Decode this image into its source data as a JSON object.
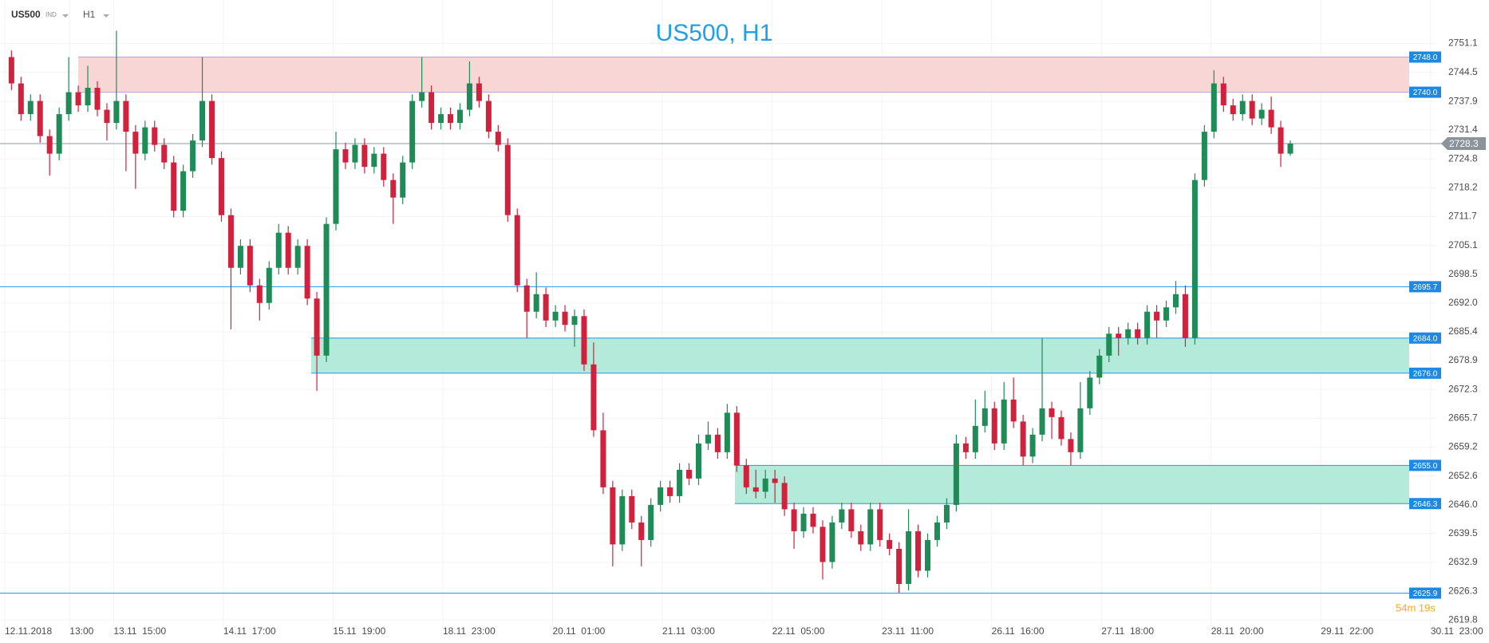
{
  "header": {
    "symbol": "US500",
    "symbol_type": "IND",
    "timeframe": "H1"
  },
  "chart_data": {
    "type": "candlestick",
    "title": "US500, H1",
    "countdown": "54m 19s",
    "up_color": "#1f8c57",
    "down_color": "#d0213d",
    "grid": true,
    "ylim": [
      2618,
      2761
    ],
    "xlim": [
      -1.2,
      149.3
    ],
    "yticks": [
      2751.1,
      2744.5,
      2737.9,
      2731.4,
      2724.8,
      2718.2,
      2711.7,
      2705.1,
      2698.5,
      {
        "value": 2692,
        "label": "2692.0"
      },
      2685.4,
      2678.9,
      2672.3,
      2665.7,
      2659.2,
      2652.6,
      {
        "value": 2646,
        "label": "2646.0"
      },
      2639.5,
      2632.9,
      2626.3,
      2619.8
    ],
    "xticks": [
      {
        "value": -0.7,
        "label": "12.11.2018"
      },
      {
        "value": 6.1,
        "label": "13:00"
      },
      {
        "value": 10.7,
        "label": "13.11  15:00"
      },
      {
        "value": 22.2,
        "label": "14.11  17:00"
      },
      {
        "value": 33.7,
        "label": "15.11  19:00"
      },
      {
        "value": 45.2,
        "label": "18.11  23:00"
      },
      {
        "value": 56.7,
        "label": "20.11  01:00"
      },
      {
        "value": 68.2,
        "label": "21.11  03:00"
      },
      {
        "value": 79.7,
        "label": "22.11  05:00"
      },
      {
        "value": 91.2,
        "label": "23.11  11:00"
      },
      {
        "value": 102.7,
        "label": "26.11  16:00"
      },
      {
        "value": 114.2,
        "label": "27.11  18:00"
      },
      {
        "value": 125.7,
        "label": "28.11  20:00"
      },
      {
        "value": 137.2,
        "label": "29.11  22:00"
      },
      {
        "value": 148.7,
        "label": "30.11  23:00"
      }
    ],
    "zones": [
      {
        "top": {
          "value": 2748,
          "label": "2748.0"
        },
        "bottom": {
          "value": 2740,
          "label": "2740.0"
        },
        "from": 7,
        "color": "#f8d6d6",
        "edge_color": "#b7a3d6"
      },
      {
        "top": {
          "value": 2684,
          "label": "2684.0"
        },
        "bottom": {
          "value": 2676,
          "label": "2676.0"
        },
        "from": 31.4,
        "color": "#b3ead9",
        "edge_color": "#2196f3"
      },
      {
        "top": {
          "value": 2655,
          "label": "2655.0"
        },
        "bottom": 2646.3,
        "from": 75.8,
        "color": "#b3ead9",
        "edge_color": "#2196f3"
      }
    ],
    "levels": [
      2695.7,
      2625.9
    ],
    "level_color": "#2196f3",
    "last_price": 2728.3,
    "open": [
      2748,
      2742,
      2735,
      2738,
      2730,
      2726,
      2735,
      2740,
      2737,
      2741,
      2736,
      2733,
      2738,
      2731,
      2726,
      2732,
      2728,
      2724,
      2713,
      2722,
      2729,
      2738,
      2725,
      2712,
      2700,
      2705,
      2696,
      2692,
      2700,
      2708,
      2700,
      2705,
      2693,
      2680,
      2710,
      2727,
      2724,
      2728,
      2723,
      2726,
      2720,
      2716,
      2724,
      2738,
      2740,
      2733,
      2735,
      2733,
      2736,
      2742,
      2738,
      2731,
      2728,
      2712,
      2696,
      2690,
      2694,
      2688,
      2690,
      2687,
      2689,
      2678,
      2663,
      2650,
      2637,
      2648,
      2642,
      2638,
      2646,
      2650,
      2648,
      2654,
      2652,
      2660,
      2662,
      2658,
      2667,
      2655,
      2650,
      2649,
      2652,
      2651,
      2645,
      2640,
      2644,
      2641,
      2633,
      2642,
      2645,
      2640,
      2637,
      2645,
      2638,
      2636,
      2628,
      2640,
      2631,
      2638,
      2642,
      2646,
      2660,
      2658,
      2664,
      2668,
      2660,
      2670,
      2665,
      2657,
      2662,
      2668,
      2666,
      2661,
      2658,
      2668,
      2675,
      2680,
      2685,
      2684,
      2686,
      2684,
      2690,
      2688,
      2691,
      2694,
      2684,
      2720,
      2731,
      2742,
      2737,
      2735,
      2738,
      2734,
      2736,
      2732,
      2726
    ],
    "high": [
      2749.5,
      2743.5,
      2739.5,
      2739.5,
      2731.5,
      2736.5,
      2748,
      2741.5,
      2746,
      2742.5,
      2737.5,
      2754,
      2739.5,
      2732.5,
      2733.5,
      2733.5,
      2729.5,
      2725.5,
      2723.5,
      2730.5,
      2748,
      2739.5,
      2726.5,
      2713.5,
      2706.5,
      2706.5,
      2697.5,
      2701.5,
      2710,
      2709.5,
      2706.5,
      2706.5,
      2694.5,
      2711.5,
      2731,
      2728.5,
      2729.5,
      2729.5,
      2727.5,
      2727.5,
      2721.5,
      2725.5,
      2739.5,
      2748,
      2741.5,
      2736.5,
      2736.5,
      2737.5,
      2747,
      2743.5,
      2739.5,
      2732.5,
      2729.5,
      2713.5,
      2697.5,
      2699,
      2695.5,
      2691.5,
      2691.5,
      2690.5,
      2690.5,
      2683,
      2667,
      2651.5,
      2649.5,
      2649.5,
      2643.5,
      2647.5,
      2651.5,
      2651.5,
      2655.5,
      2655.5,
      2662,
      2665,
      2663.5,
      2669,
      2668.5,
      2656.5,
      2654,
      2654,
      2654,
      2652.5,
      2646.5,
      2645.5,
      2645.5,
      2642.5,
      2643.5,
      2646.5,
      2646.5,
      2641.5,
      2646.5,
      2646.5,
      2639.5,
      2637.5,
      2645,
      2641.5,
      2639.5,
      2643.5,
      2647.5,
      2662,
      2661.5,
      2670,
      2672,
      2669.5,
      2674,
      2675,
      2666.5,
      2663.5,
      2684,
      2669.5,
      2667.5,
      2662.5,
      2674,
      2676.5,
      2681.5,
      2686.5,
      2686.5,
      2687.5,
      2687.5,
      2691.5,
      2691.5,
      2692.5,
      2697,
      2696,
      2721.5,
      2732.5,
      2745,
      2743.5,
      2738.5,
      2739.5,
      2739.5,
      2737.5,
      2739,
      2733.5,
      2729
    ],
    "low": [
      2740.5,
      2733.5,
      2733.5,
      2728.5,
      2721,
      2724.5,
      2733.5,
      2735.5,
      2735.5,
      2734.5,
      2729,
      2731.5,
      2722,
      2718,
      2724.5,
      2726.5,
      2722.5,
      2711.5,
      2711.5,
      2720.5,
      2727.5,
      2723.5,
      2710.5,
      2686,
      2698.5,
      2694.5,
      2688,
      2690.5,
      2698.5,
      2698.5,
      2698.5,
      2691.5,
      2672,
      2678.5,
      2708.5,
      2722.5,
      2722.5,
      2721.5,
      2721.5,
      2718.5,
      2710,
      2714.5,
      2722.5,
      2736.5,
      2731.5,
      2731.5,
      2731.5,
      2731.5,
      2734.5,
      2736.5,
      2729.5,
      2726.5,
      2710.5,
      2694.5,
      2684,
      2688.5,
      2686.5,
      2686.5,
      2685.5,
      2682,
      2676.5,
      2661.5,
      2648.5,
      2632,
      2635.5,
      2640.5,
      2632,
      2636.5,
      2644.5,
      2646.5,
      2646.5,
      2650.5,
      2650.5,
      2658.5,
      2656.5,
      2656.5,
      2653.5,
      2648.5,
      2647.5,
      2647.5,
      2646.5,
      2643.5,
      2636,
      2638.5,
      2639.5,
      2629,
      2631.5,
      2640.5,
      2638.5,
      2635.5,
      2635.5,
      2636.5,
      2634.5,
      2626,
      2626.5,
      2629.5,
      2629.5,
      2636.5,
      2640.5,
      2644.5,
      2656.5,
      2656.5,
      2662.5,
      2658.5,
      2658.5,
      2663.5,
      2655,
      2655.5,
      2660.5,
      2661,
      2659.5,
      2655,
      2656.5,
      2666.5,
      2673.5,
      2678.5,
      2680,
      2682.5,
      2682.5,
      2682.5,
      2684,
      2686.5,
      2689.5,
      2682,
      2682.5,
      2718.5,
      2729.5,
      2735.5,
      2733.5,
      2733.5,
      2732.5,
      2732.5,
      2730.5,
      2723,
      2725.5
    ],
    "close": [
      2742,
      2735,
      2738,
      2730,
      2726,
      2735,
      2740,
      2737,
      2741,
      2736,
      2733,
      2738,
      2731,
      2726,
      2732,
      2728,
      2724,
      2713,
      2722,
      2729,
      2738,
      2725,
      2712,
      2700,
      2705,
      2696,
      2692,
      2700,
      2708,
      2700,
      2705,
      2693,
      2680,
      2710,
      2727,
      2724,
      2728,
      2723,
      2726,
      2720,
      2716,
      2724,
      2738,
      2740,
      2733,
      2735,
      2733,
      2736,
      2742,
      2738,
      2731,
      2728,
      2712,
      2696,
      2690,
      2694,
      2688,
      2690,
      2687,
      2689,
      2678,
      2663,
      2650,
      2637,
      2648,
      2642,
      2638,
      2646,
      2650,
      2648,
      2654,
      2652,
      2660,
      2662,
      2658,
      2667,
      2655,
      2650,
      2649,
      2652,
      2651,
      2645,
      2640,
      2644,
      2641,
      2633,
      2642,
      2645,
      2640,
      2637,
      2645,
      2638,
      2636,
      2628,
      2640,
      2631,
      2638,
      2642,
      2646,
      2660,
      2658,
      2664,
      2668,
      2660,
      2670,
      2665,
      2657,
      2662,
      2668,
      2666,
      2661,
      2658,
      2668,
      2675,
      2680,
      2685,
      2684,
      2686,
      2684,
      2690,
      2688,
      2691,
      2694,
      2684,
      2720,
      2731,
      2742,
      2737,
      2735,
      2738,
      2734,
      2736,
      2732,
      2726,
      2728.3
    ]
  }
}
